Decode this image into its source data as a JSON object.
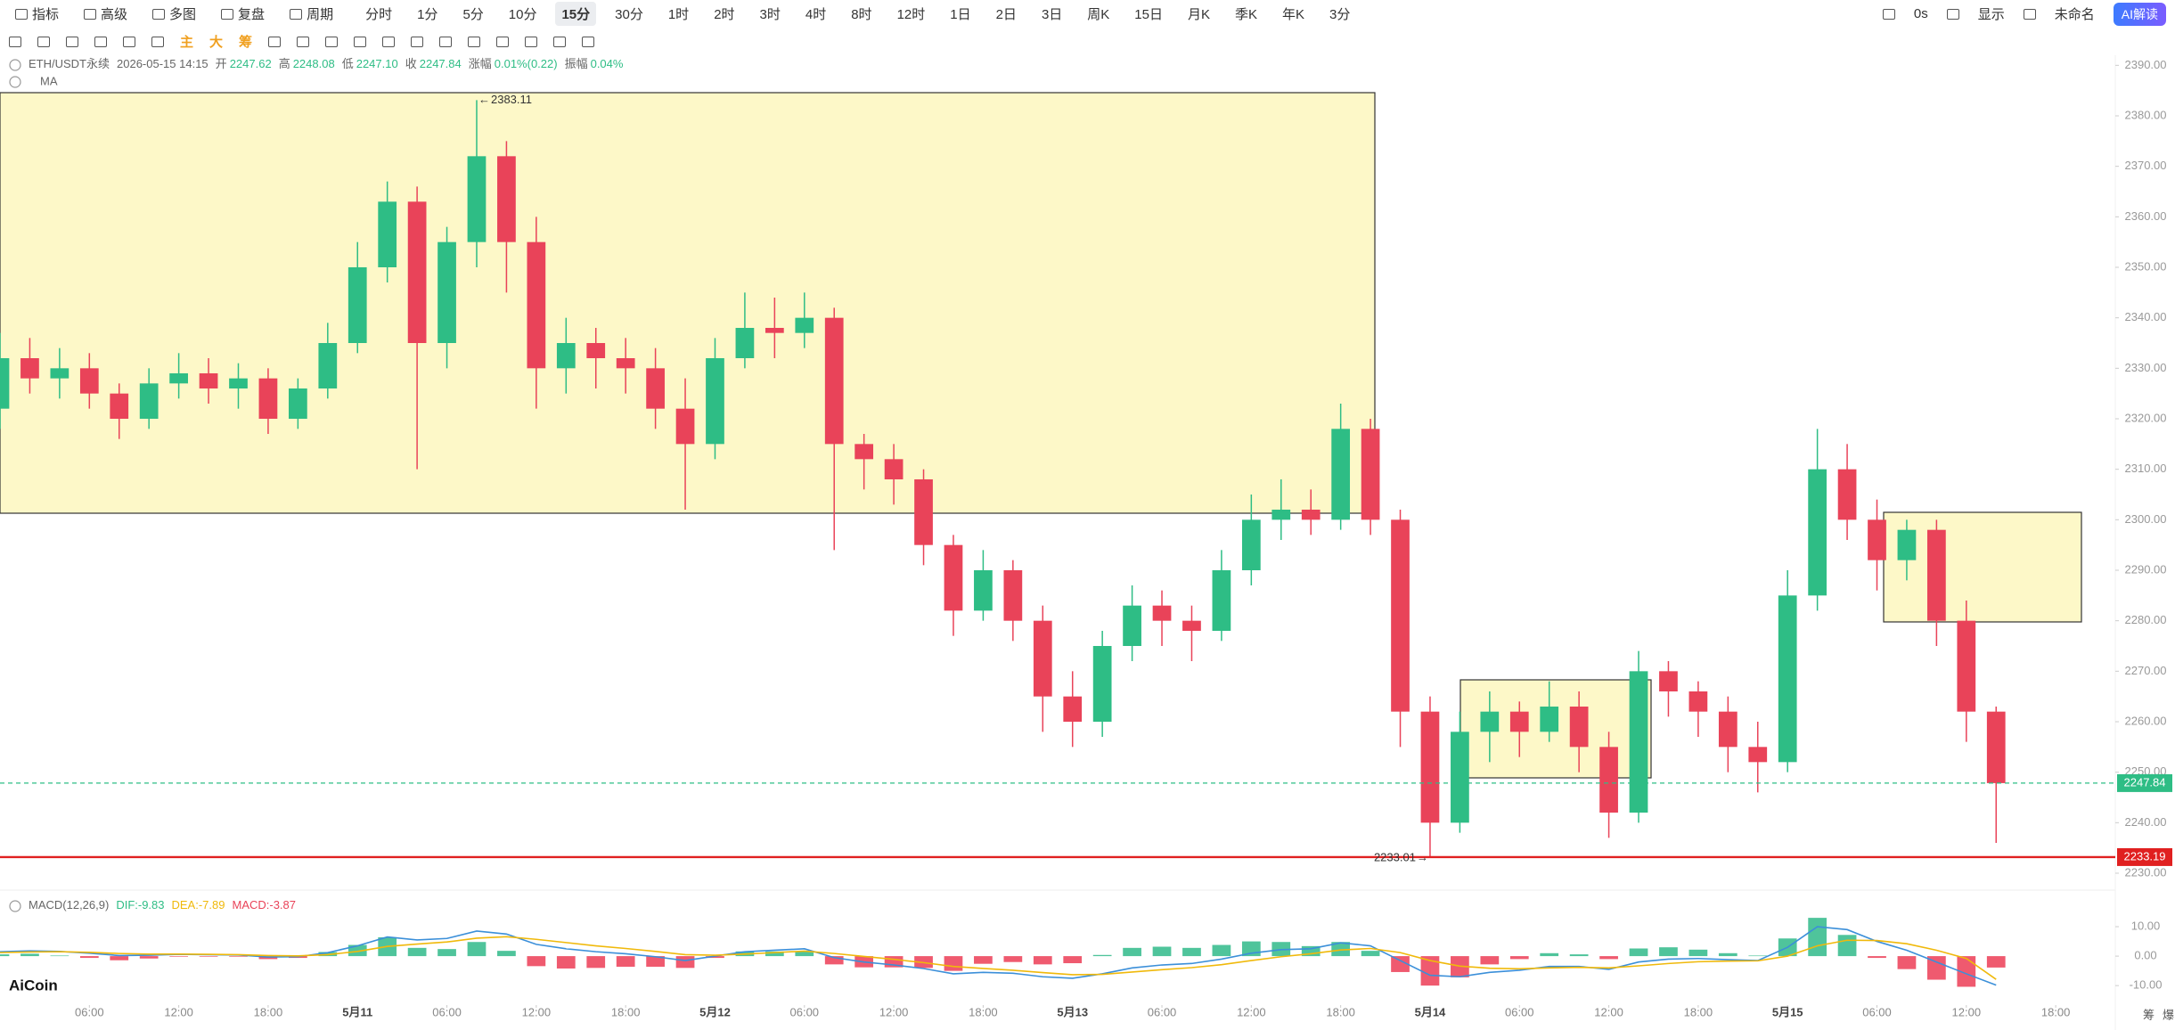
{
  "menu": [
    "指标",
    "高级",
    "多图",
    "复盘",
    "周期"
  ],
  "intervals": [
    "分时",
    "1分",
    "5分",
    "10分",
    "15分",
    "30分",
    "1时",
    "2时",
    "3时",
    "4时",
    "8时",
    "12时",
    "1日",
    "2日",
    "3日",
    "周K",
    "15日",
    "月K",
    "季K",
    "年K",
    "3分"
  ],
  "active_interval": "15分",
  "right_menu": [
    "0s",
    "显示",
    "未命名"
  ],
  "ai_button": "AI解读",
  "tools": [
    {
      "text": "主",
      "color": "#f0a020"
    },
    {
      "text": "大",
      "color": "#f0a020"
    },
    {
      "text": "筹",
      "color": "#f0a020"
    }
  ],
  "info": {
    "symbol": "ETH/USDT永续",
    "time": "2026-05-15 14:15",
    "fields": [
      {
        "label": "开",
        "value": "2247.62"
      },
      {
        "label": "高",
        "value": "2248.08"
      },
      {
        "label": "低",
        "value": "2247.10"
      },
      {
        "label": "收",
        "value": "2247.84"
      },
      {
        "label": "涨幅",
        "value": "0.01%(0.22)"
      },
      {
        "label": "振幅",
        "value": "0.04%"
      }
    ]
  },
  "ma_label": "MA",
  "macd_legend": [
    {
      "text": "MACD(12,26,9)",
      "color": "#666"
    },
    {
      "text": "DIF:-9.83",
      "color": "#2ebd85"
    },
    {
      "text": "DEA:-7.89",
      "color": "#f0b90b"
    },
    {
      "text": "MACD:-3.87",
      "color": "#e94359"
    }
  ],
  "logo": "AiCoin",
  "corner": [
    "筹",
    "爆"
  ],
  "chart_data": [
    {
      "type": "candlestick",
      "up_color": "#2ebd85",
      "down_color": "#e94359",
      "x": [
        0,
        2,
        4,
        6,
        8,
        10,
        12,
        14,
        16,
        18,
        20,
        22,
        24,
        26,
        28,
        30,
        32,
        34,
        36,
        38,
        40,
        42,
        44,
        46,
        48,
        50,
        52,
        54,
        56,
        58,
        60,
        62,
        64,
        66,
        68,
        70,
        72,
        74,
        76,
        78,
        80,
        82,
        84,
        86,
        88,
        90,
        92,
        94,
        96,
        98,
        100,
        102,
        104,
        106,
        108,
        110,
        112,
        114,
        116,
        118,
        120,
        122,
        124,
        126,
        128,
        130,
        132,
        134
      ],
      "open": [
        2322,
        2332,
        2328,
        2330,
        2325,
        2320,
        2327,
        2329,
        2326,
        2328,
        2320,
        2326,
        2335,
        2350,
        2363,
        2335,
        2355,
        2372,
        2355,
        2330,
        2335,
        2332,
        2330,
        2322,
        2315,
        2332,
        2338,
        2337,
        2340,
        2315,
        2312,
        2308,
        2295,
        2282,
        2290,
        2280,
        2265,
        2260,
        2275,
        2283,
        2280,
        2278,
        2290,
        2300,
        2302,
        2300,
        2318,
        2300,
        2262,
        2240,
        2258,
        2262,
        2258,
        2263,
        2255,
        2242,
        2270,
        2266,
        2262,
        2255,
        2252,
        2285,
        2310,
        2300,
        2292,
        2298,
        2280,
        2262
      ],
      "high": [
        2337,
        2336,
        2334,
        2333,
        2327,
        2330,
        2333,
        2332,
        2331,
        2330,
        2328,
        2339,
        2355,
        2367,
        2366,
        2358,
        2383.11,
        2375,
        2360,
        2340,
        2338,
        2336,
        2334,
        2328,
        2336,
        2345,
        2344,
        2345,
        2342,
        2317,
        2315,
        2310,
        2297,
        2294,
        2292,
        2283,
        2270,
        2278,
        2287,
        2286,
        2283,
        2294,
        2305,
        2308,
        2306,
        2323,
        2320,
        2302,
        2265,
        2262,
        2266,
        2264,
        2268,
        2266,
        2258,
        2274,
        2272,
        2268,
        2265,
        2260,
        2290,
        2318,
        2315,
        2304,
        2300,
        2300,
        2284,
        2263
      ],
      "low": [
        2318,
        2325,
        2324,
        2322,
        2316,
        2318,
        2324,
        2323,
        2322,
        2317,
        2318,
        2324,
        2333,
        2347,
        2310,
        2330,
        2350,
        2345,
        2322,
        2325,
        2326,
        2325,
        2318,
        2302,
        2312,
        2330,
        2332,
        2334,
        2294,
        2306,
        2303,
        2291,
        2277,
        2280,
        2276,
        2258,
        2255,
        2257,
        2272,
        2275,
        2272,
        2276,
        2287,
        2296,
        2297,
        2298,
        2297,
        2255,
        2233.01,
        2238,
        2252,
        2253,
        2256,
        2250,
        2237,
        2240,
        2261,
        2257,
        2250,
        2246,
        2250,
        2282,
        2296,
        2286,
        2288,
        2275,
        2256,
        2236
      ],
      "close": [
        2332,
        2328,
        2330,
        2325,
        2320,
        2327,
        2329,
        2326,
        2328,
        2320,
        2326,
        2335,
        2350,
        2363,
        2335,
        2355,
        2372,
        2355,
        2330,
        2335,
        2332,
        2330,
        2322,
        2315,
        2332,
        2338,
        2337,
        2340,
        2315,
        2312,
        2308,
        2295,
        2282,
        2290,
        2280,
        2265,
        2260,
        2275,
        2283,
        2280,
        2278,
        2290,
        2300,
        2302,
        2300,
        2318,
        2300,
        2262,
        2240,
        2258,
        2262,
        2258,
        2263,
        2255,
        2242,
        2270,
        2266,
        2262,
        2255,
        2252,
        2285,
        2310,
        2300,
        2292,
        2298,
        2280,
        2262,
        2247.84
      ],
      "xlim": [
        0,
        142
      ],
      "xticks": [
        {
          "value": 6,
          "label": "06:00"
        },
        {
          "value": 12,
          "label": "12:00"
        },
        {
          "value": 18,
          "label": "18:00"
        },
        {
          "value": 24,
          "label": "5月11"
        },
        {
          "value": 30,
          "label": "06:00"
        },
        {
          "value": 36,
          "label": "12:00"
        },
        {
          "value": 42,
          "label": "18:00"
        },
        {
          "value": 48,
          "label": "5月12"
        },
        {
          "value": 54,
          "label": "06:00"
        },
        {
          "value": 60,
          "label": "12:00"
        },
        {
          "value": 66,
          "label": "18:00"
        },
        {
          "value": 72,
          "label": "5月13"
        },
        {
          "value": 78,
          "label": "06:00"
        },
        {
          "value": 84,
          "label": "12:00"
        },
        {
          "value": 90,
          "label": "18:00"
        },
        {
          "value": 96,
          "label": "5月14"
        },
        {
          "value": 102,
          "label": "06:00"
        },
        {
          "value": 108,
          "label": "12:00"
        },
        {
          "value": 114,
          "label": "18:00"
        },
        {
          "value": 120,
          "label": "5月15"
        },
        {
          "value": 126,
          "label": "06:00"
        },
        {
          "value": 132,
          "label": "12:00"
        },
        {
          "value": 138,
          "label": "18:00"
        }
      ],
      "ylim": [
        2227,
        2392
      ],
      "yticks": [
        {
          "value": 2230,
          "label": "2230.00"
        },
        {
          "value": 2240,
          "label": "2240.00"
        },
        {
          "value": 2250,
          "label": "2250.00"
        },
        {
          "value": 2260,
          "label": "2260.00"
        },
        {
          "value": 2270,
          "label": "2270.00"
        },
        {
          "value": 2280,
          "label": "2280.00"
        },
        {
          "value": 2290,
          "label": "2290.00"
        },
        {
          "value": 2300,
          "label": "2300.00"
        },
        {
          "value": 2310,
          "label": "2310.00"
        },
        {
          "value": 2320,
          "label": "2320.00"
        },
        {
          "value": 2330,
          "label": "2330.00"
        },
        {
          "value": 2340,
          "label": "2340.00"
        },
        {
          "value": 2350,
          "label": "2350.00"
        },
        {
          "value": 2360,
          "label": "2360.00"
        },
        {
          "value": 2370,
          "label": "2370.00"
        },
        {
          "value": 2380,
          "label": "2380.00"
        },
        {
          "value": 2390,
          "label": "2390.00"
        }
      ],
      "grid": false,
      "max_price": 2383.11,
      "max_price_x": 32,
      "min_price": 2233.01,
      "min_price_x": 96,
      "last_price": 2247.84,
      "last_price_color": "#2ebd85",
      "alert_price": 2233.19,
      "alert_color": "#e02020"
    },
    {
      "type": "macd",
      "series": [
        {
          "name": "MACD",
          "kind": "bar",
          "up_color": "#4fc49b",
          "down_color": "#ef5a6f",
          "values": [
            0.6,
            0.8,
            0.2,
            -0.6,
            -1.4,
            -0.8,
            -0.2,
            -0.2,
            -0.2,
            -1.0,
            -0.6,
            1.4,
            3.8,
            6.4,
            2.8,
            2.4,
            4.8,
            1.8,
            -3.4,
            -4.2,
            -4.0,
            -3.6,
            -3.6,
            -4.0,
            -0.6,
            1.6,
            1.6,
            1.6,
            -2.8,
            -3.8,
            -3.8,
            -4.0,
            -5.0,
            -2.6,
            -2.0,
            -2.8,
            -2.4,
            0.4,
            2.8,
            3.2,
            2.8,
            3.8,
            5.0,
            4.8,
            3.4,
            4.8,
            1.8,
            -5.4,
            -10.0,
            -7.2,
            -2.8,
            -1.0,
            1.0,
            0.6,
            -1.0,
            2.6,
            3.0,
            2.2,
            1.0,
            0.2,
            6.0,
            13.0,
            7.2,
            -0.6,
            -4.4,
            -8.0,
            -10.4,
            -3.87
          ]
        },
        {
          "name": "DIF",
          "kind": "line",
          "color": "#3b8fd9",
          "values": [
            1.5,
            1.8,
            1.6,
            1.0,
            0.2,
            0.3,
            0.6,
            0.5,
            0.4,
            -0.3,
            -0.2,
            1.2,
            3.5,
            6.5,
            5.5,
            6.0,
            8.5,
            7.5,
            4.0,
            2.5,
            1.5,
            0.8,
            -0.2,
            -1.5,
            0.0,
            1.5,
            2.0,
            2.5,
            -0.5,
            -2.0,
            -3.0,
            -4.2,
            -6.0,
            -5.5,
            -5.8,
            -7.0,
            -7.5,
            -6.0,
            -4.0,
            -3.0,
            -2.5,
            -1.0,
            1.0,
            2.2,
            2.5,
            4.5,
            3.5,
            -1.5,
            -6.5,
            -7.0,
            -5.5,
            -4.8,
            -3.5,
            -3.5,
            -4.5,
            -2.0,
            -1.0,
            -0.8,
            -1.2,
            -1.5,
            3.0,
            10.0,
            9.0,
            5.0,
            2.0,
            -2.0,
            -6.0,
            -9.83
          ]
        },
        {
          "name": "DEA",
          "kind": "line",
          "color": "#f0b90b",
          "values": [
            1.2,
            1.4,
            1.5,
            1.3,
            0.9,
            0.7,
            0.7,
            0.6,
            0.5,
            0.2,
            0.1,
            0.5,
            1.6,
            3.3,
            4.1,
            4.8,
            6.1,
            6.6,
            5.7,
            4.6,
            3.5,
            2.6,
            1.6,
            0.5,
            0.3,
            0.7,
            1.2,
            1.7,
            0.9,
            -0.1,
            -1.1,
            -2.2,
            -3.5,
            -4.2,
            -4.8,
            -5.6,
            -6.3,
            -6.2,
            -5.4,
            -4.6,
            -3.9,
            -2.9,
            -1.5,
            -0.2,
            0.8,
            2.1,
            2.6,
            1.2,
            -1.5,
            -3.4,
            -4.1,
            -4.3,
            -4.0,
            -3.8,
            -4.0,
            -3.3,
            -2.5,
            -1.9,
            -1.7,
            -1.6,
            0.0,
            3.5,
            5.4,
            5.3,
            4.2,
            2.0,
            -0.8,
            -7.89
          ]
        }
      ],
      "ylim": [
        -15.7,
        20.9
      ],
      "yticks": [
        {
          "value": -10,
          "label": "-10.00"
        },
        {
          "value": 0,
          "label": "0.00"
        },
        {
          "value": 10,
          "label": "10.00"
        }
      ]
    }
  ]
}
